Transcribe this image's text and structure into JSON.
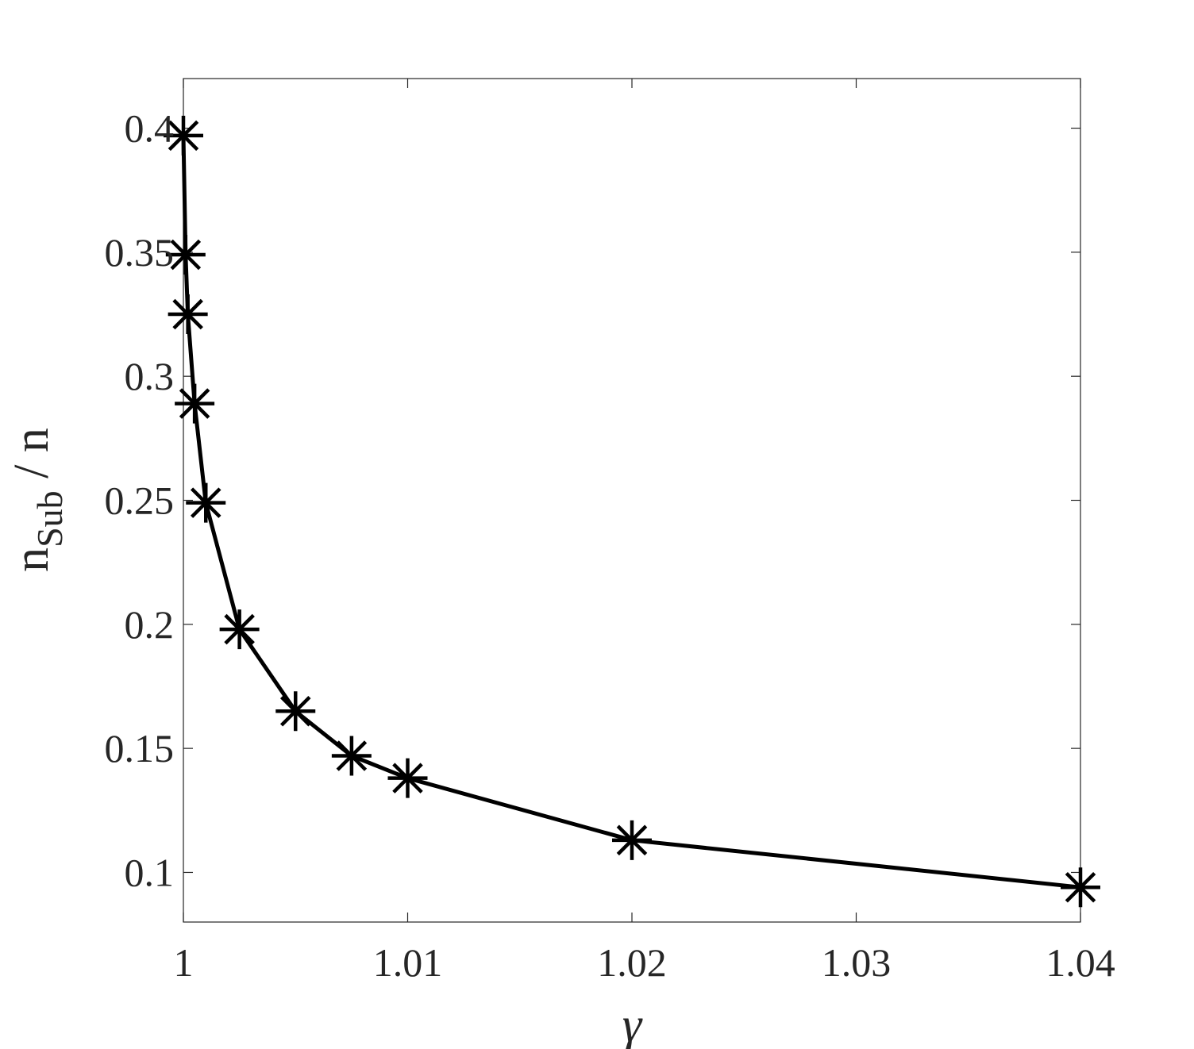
{
  "chart_data": {
    "type": "line",
    "title": "",
    "xlabel": "γ",
    "ylabel": {
      "main": "n",
      "subscript": "Sub",
      "suffix": " / n"
    },
    "xlim": [
      1.0,
      1.04
    ],
    "ylim": [
      0.08,
      0.42
    ],
    "xticks": [
      1.0,
      1.01,
      1.02,
      1.03,
      1.04
    ],
    "xtick_labels": [
      "1",
      "1.01",
      "1.02",
      "1.03",
      "1.04"
    ],
    "yticks": [
      0.1,
      0.15,
      0.2,
      0.25,
      0.3,
      0.35,
      0.4
    ],
    "ytick_labels": [
      "0.1",
      "0.15",
      "0.2",
      "0.25",
      "0.3",
      "0.35",
      "0.4"
    ],
    "grid": false,
    "marker": "asterisk",
    "line_color": "#000000",
    "series": [
      {
        "x": [
          1.0,
          1.0001,
          1.0002,
          1.0005,
          1.001,
          1.0025,
          1.005,
          1.0075,
          1.01,
          1.02,
          1.04
        ],
        "y": [
          0.397,
          0.349,
          0.325,
          0.289,
          0.249,
          0.198,
          0.165,
          0.147,
          0.138,
          0.113,
          0.094
        ]
      }
    ]
  }
}
